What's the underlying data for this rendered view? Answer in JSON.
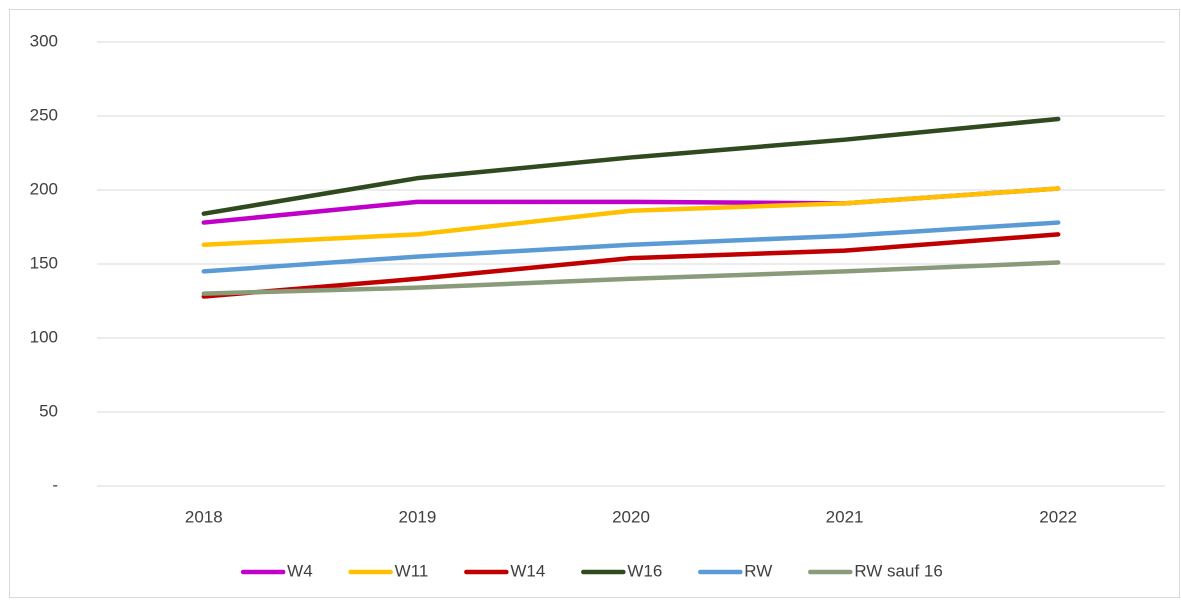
{
  "chart_data": {
    "type": "line",
    "categories": [
      "2018",
      "2019",
      "2020",
      "2021",
      "2022"
    ],
    "series": [
      {
        "name": "W4",
        "color": "#c000c8",
        "values": [
          178,
          192,
          192,
          191,
          201
        ]
      },
      {
        "name": "W11",
        "color": "#ffc000",
        "values": [
          163,
          170,
          186,
          191,
          201
        ]
      },
      {
        "name": "W14",
        "color": "#c00000",
        "values": [
          128,
          140,
          154,
          159,
          170
        ]
      },
      {
        "name": "W16",
        "color": "#2f4a1e",
        "values": [
          184,
          208,
          222,
          234,
          248
        ]
      },
      {
        "name": "RW",
        "color": "#5b9bd5",
        "values": [
          145,
          155,
          163,
          169,
          178
        ]
      },
      {
        "name": "RW sauf 16",
        "color": "#8a9b7a",
        "values": [
          130,
          134,
          140,
          145,
          151
        ]
      }
    ],
    "ylim": [
      0,
      300
    ],
    "yticks": [
      {
        "value": 0,
        "label": "-"
      },
      50,
      100,
      150,
      200,
      250,
      300
    ],
    "grid": true,
    "legend": "bottom"
  }
}
